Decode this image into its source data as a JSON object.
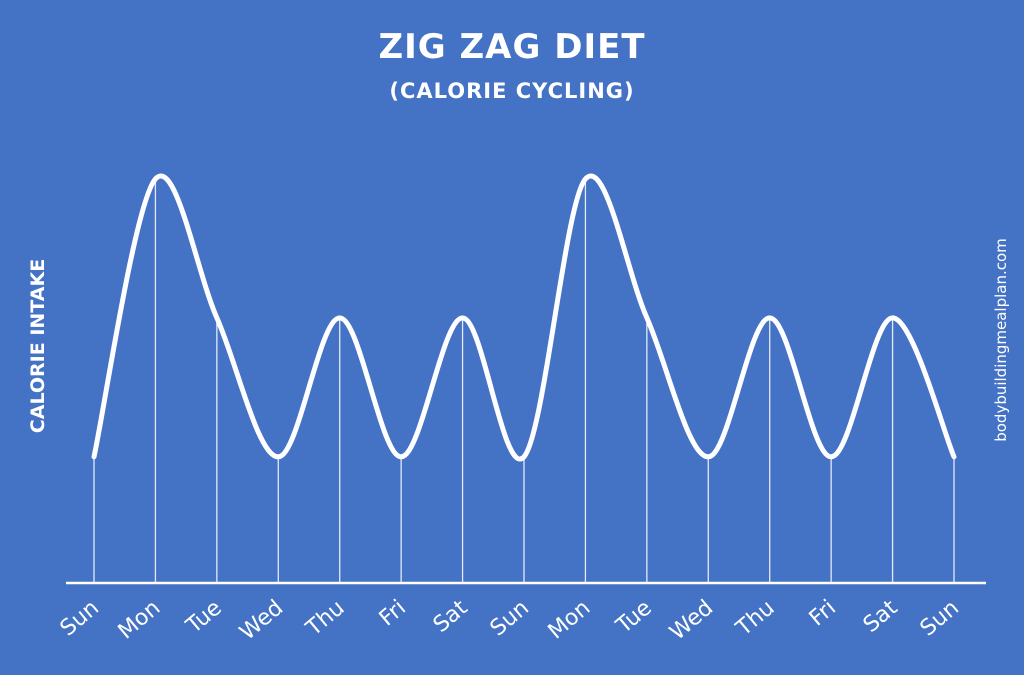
{
  "chart_data": {
    "type": "line",
    "title": "ZIG ZAG DIET",
    "subtitle": "(CALORIE CYCLING)",
    "xlabel": "",
    "ylabel": "CALORIE INTAKE",
    "categories": [
      "Sun",
      "Mon",
      "Tue",
      "Wed",
      "Thu",
      "Fri",
      "Sat",
      "Sun",
      "Mon",
      "Tue",
      "Wed",
      "Thu",
      "Fri",
      "Sat",
      "Sun"
    ],
    "values": [
      1,
      3.2,
      2.1,
      1,
      2.1,
      1,
      2.1,
      1,
      3.2,
      2.1,
      1,
      2.1,
      1,
      2.1,
      1
    ],
    "ylim": [
      0,
      3.2
    ],
    "grid": false,
    "axis_ticks_shown": false
  },
  "watermark": "bodybuildingmealplan.com",
  "colors": {
    "background": "#4472c4",
    "line": "#ffffff"
  }
}
